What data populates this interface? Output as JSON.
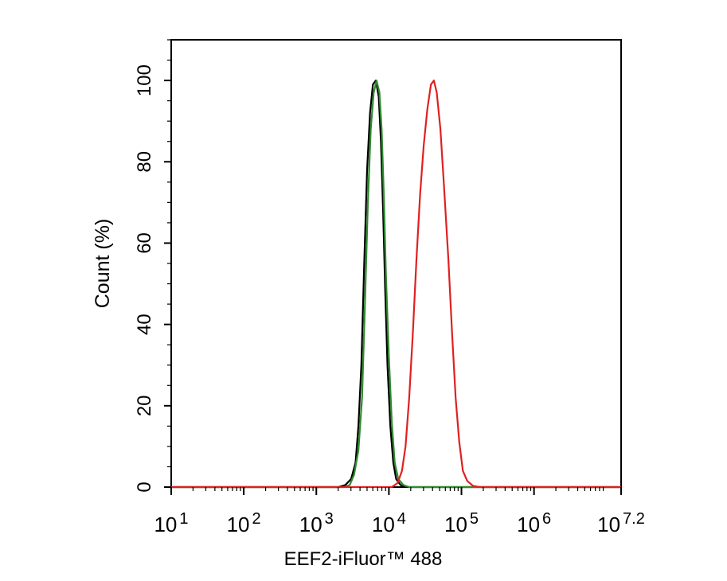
{
  "chart_data": {
    "type": "line",
    "title": "",
    "xlabel": "EEF2-iFluor™ 488",
    "ylabel": "Count  (%)",
    "x_scale": "log10",
    "xlim": [
      1,
      7.2
    ],
    "ylim": [
      0,
      110
    ],
    "grid": false,
    "legend": "none",
    "x_ticks": [
      {
        "value": 1,
        "base": "10",
        "exp": "1"
      },
      {
        "value": 2,
        "base": "10",
        "exp": "2"
      },
      {
        "value": 3,
        "base": "10",
        "exp": "3"
      },
      {
        "value": 4,
        "base": "10",
        "exp": "4"
      },
      {
        "value": 5,
        "base": "10",
        "exp": "5"
      },
      {
        "value": 6,
        "base": "10",
        "exp": "6"
      },
      {
        "value": 7.2,
        "base": "10",
        "exp": "7.2"
      }
    ],
    "y_ticks": [
      {
        "value": 0,
        "label": "0"
      },
      {
        "value": 20,
        "label": "20"
      },
      {
        "value": 40,
        "label": "40"
      },
      {
        "value": 60,
        "label": "60"
      },
      {
        "value": 80,
        "label": "80"
      },
      {
        "value": 100,
        "label": "100"
      }
    ],
    "series": [
      {
        "color": "#000000",
        "points": [
          [
            1.0,
            0
          ],
          [
            3.3,
            0
          ],
          [
            3.4,
            0.5
          ],
          [
            3.48,
            2
          ],
          [
            3.54,
            6
          ],
          [
            3.58,
            15
          ],
          [
            3.62,
            30
          ],
          [
            3.66,
            55
          ],
          [
            3.7,
            78
          ],
          [
            3.74,
            92
          ],
          [
            3.78,
            99
          ],
          [
            3.82,
            100
          ],
          [
            3.86,
            96
          ],
          [
            3.89,
            85
          ],
          [
            3.92,
            68
          ],
          [
            3.95,
            48
          ],
          [
            3.98,
            30
          ],
          [
            4.02,
            15
          ],
          [
            4.06,
            6
          ],
          [
            4.1,
            2
          ],
          [
            4.16,
            0.5
          ],
          [
            4.25,
            0
          ],
          [
            7.2,
            0
          ]
        ]
      },
      {
        "color": "#2e8b2e",
        "points": [
          [
            1.0,
            0
          ],
          [
            3.38,
            0
          ],
          [
            3.46,
            0.5
          ],
          [
            3.52,
            3
          ],
          [
            3.58,
            9
          ],
          [
            3.63,
            22
          ],
          [
            3.67,
            45
          ],
          [
            3.71,
            70
          ],
          [
            3.75,
            88
          ],
          [
            3.79,
            97
          ],
          [
            3.83,
            100
          ],
          [
            3.87,
            97
          ],
          [
            3.9,
            88
          ],
          [
            3.93,
            72
          ],
          [
            3.96,
            52
          ],
          [
            4.0,
            32
          ],
          [
            4.04,
            16
          ],
          [
            4.08,
            6
          ],
          [
            4.13,
            2
          ],
          [
            4.2,
            0.5
          ],
          [
            4.28,
            0
          ],
          [
            7.2,
            0
          ]
        ]
      },
      {
        "color": "#e02020",
        "points": [
          [
            1.0,
            0
          ],
          [
            4.04,
            0
          ],
          [
            4.12,
            1
          ],
          [
            4.18,
            4
          ],
          [
            4.23,
            10
          ],
          [
            4.28,
            22
          ],
          [
            4.33,
            38
          ],
          [
            4.38,
            56
          ],
          [
            4.43,
            72
          ],
          [
            4.48,
            84
          ],
          [
            4.53,
            93
          ],
          [
            4.58,
            99
          ],
          [
            4.62,
            100
          ],
          [
            4.66,
            97
          ],
          [
            4.71,
            88
          ],
          [
            4.76,
            74
          ],
          [
            4.82,
            56
          ],
          [
            4.87,
            38
          ],
          [
            4.92,
            22
          ],
          [
            4.97,
            11
          ],
          [
            5.02,
            4
          ],
          [
            5.08,
            1.5
          ],
          [
            5.16,
            0.3
          ],
          [
            5.25,
            0
          ],
          [
            7.2,
            0
          ]
        ]
      }
    ]
  }
}
